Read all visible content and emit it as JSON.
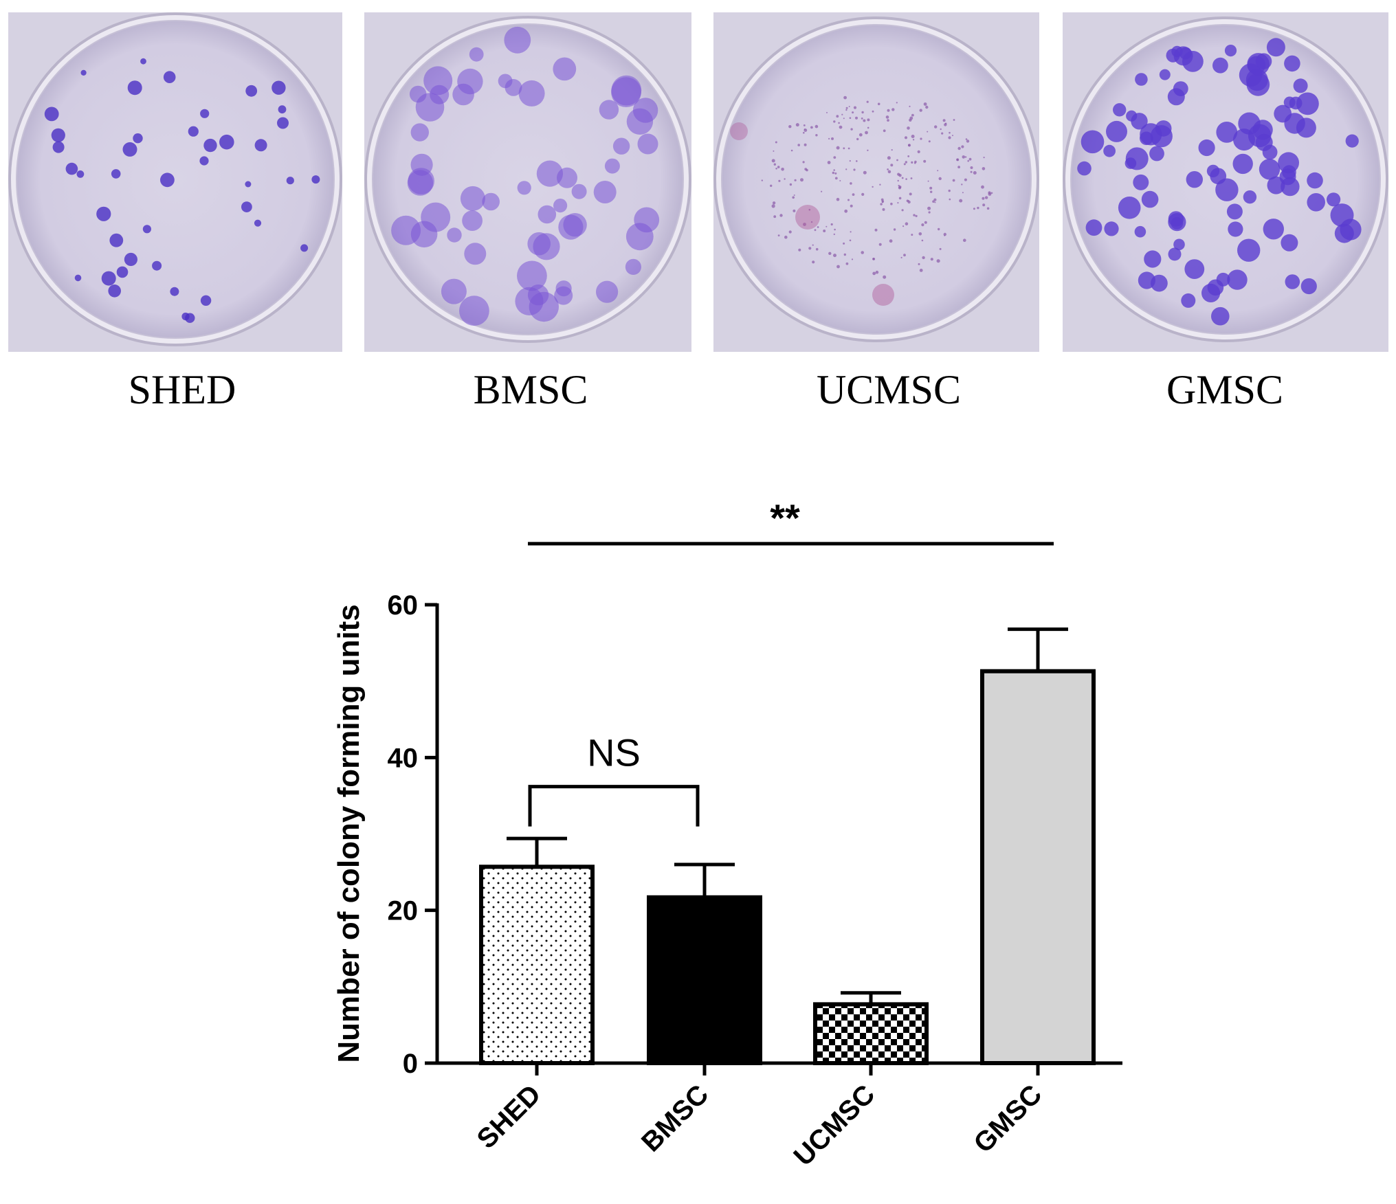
{
  "plates": [
    {
      "label": "SHED",
      "density": "sparse-dark",
      "color": "#4a2fc4"
    },
    {
      "label": "BMSC",
      "density": "medium-fuzzy",
      "color": "#7a55d6"
    },
    {
      "label": "UCMSC",
      "density": "speckled",
      "color": "#8a5aa8"
    },
    {
      "label": "GMSC",
      "density": "dense",
      "color": "#5a3cd0"
    }
  ],
  "chart_data": {
    "type": "bar",
    "categories": [
      "SHED",
      "BMSC",
      "UCMSC",
      "GMSC"
    ],
    "values": [
      25.7,
      21.7,
      7.7,
      51.3
    ],
    "errors": [
      3.7,
      4.3,
      1.5,
      5.5
    ],
    "patterns": [
      "dots",
      "solid-black",
      "checker",
      "solid-gray"
    ],
    "ylabel": "Number of colony forming units",
    "ylim": [
      0,
      60
    ],
    "yticks": [
      0,
      20,
      40,
      60
    ],
    "grid": false,
    "annotations": [
      {
        "text": "NS",
        "from": "SHED",
        "to": "BMSC",
        "level": 36.2
      },
      {
        "text": "**",
        "from": "SHED",
        "to": "GMSC",
        "level": 68
      }
    ]
  }
}
